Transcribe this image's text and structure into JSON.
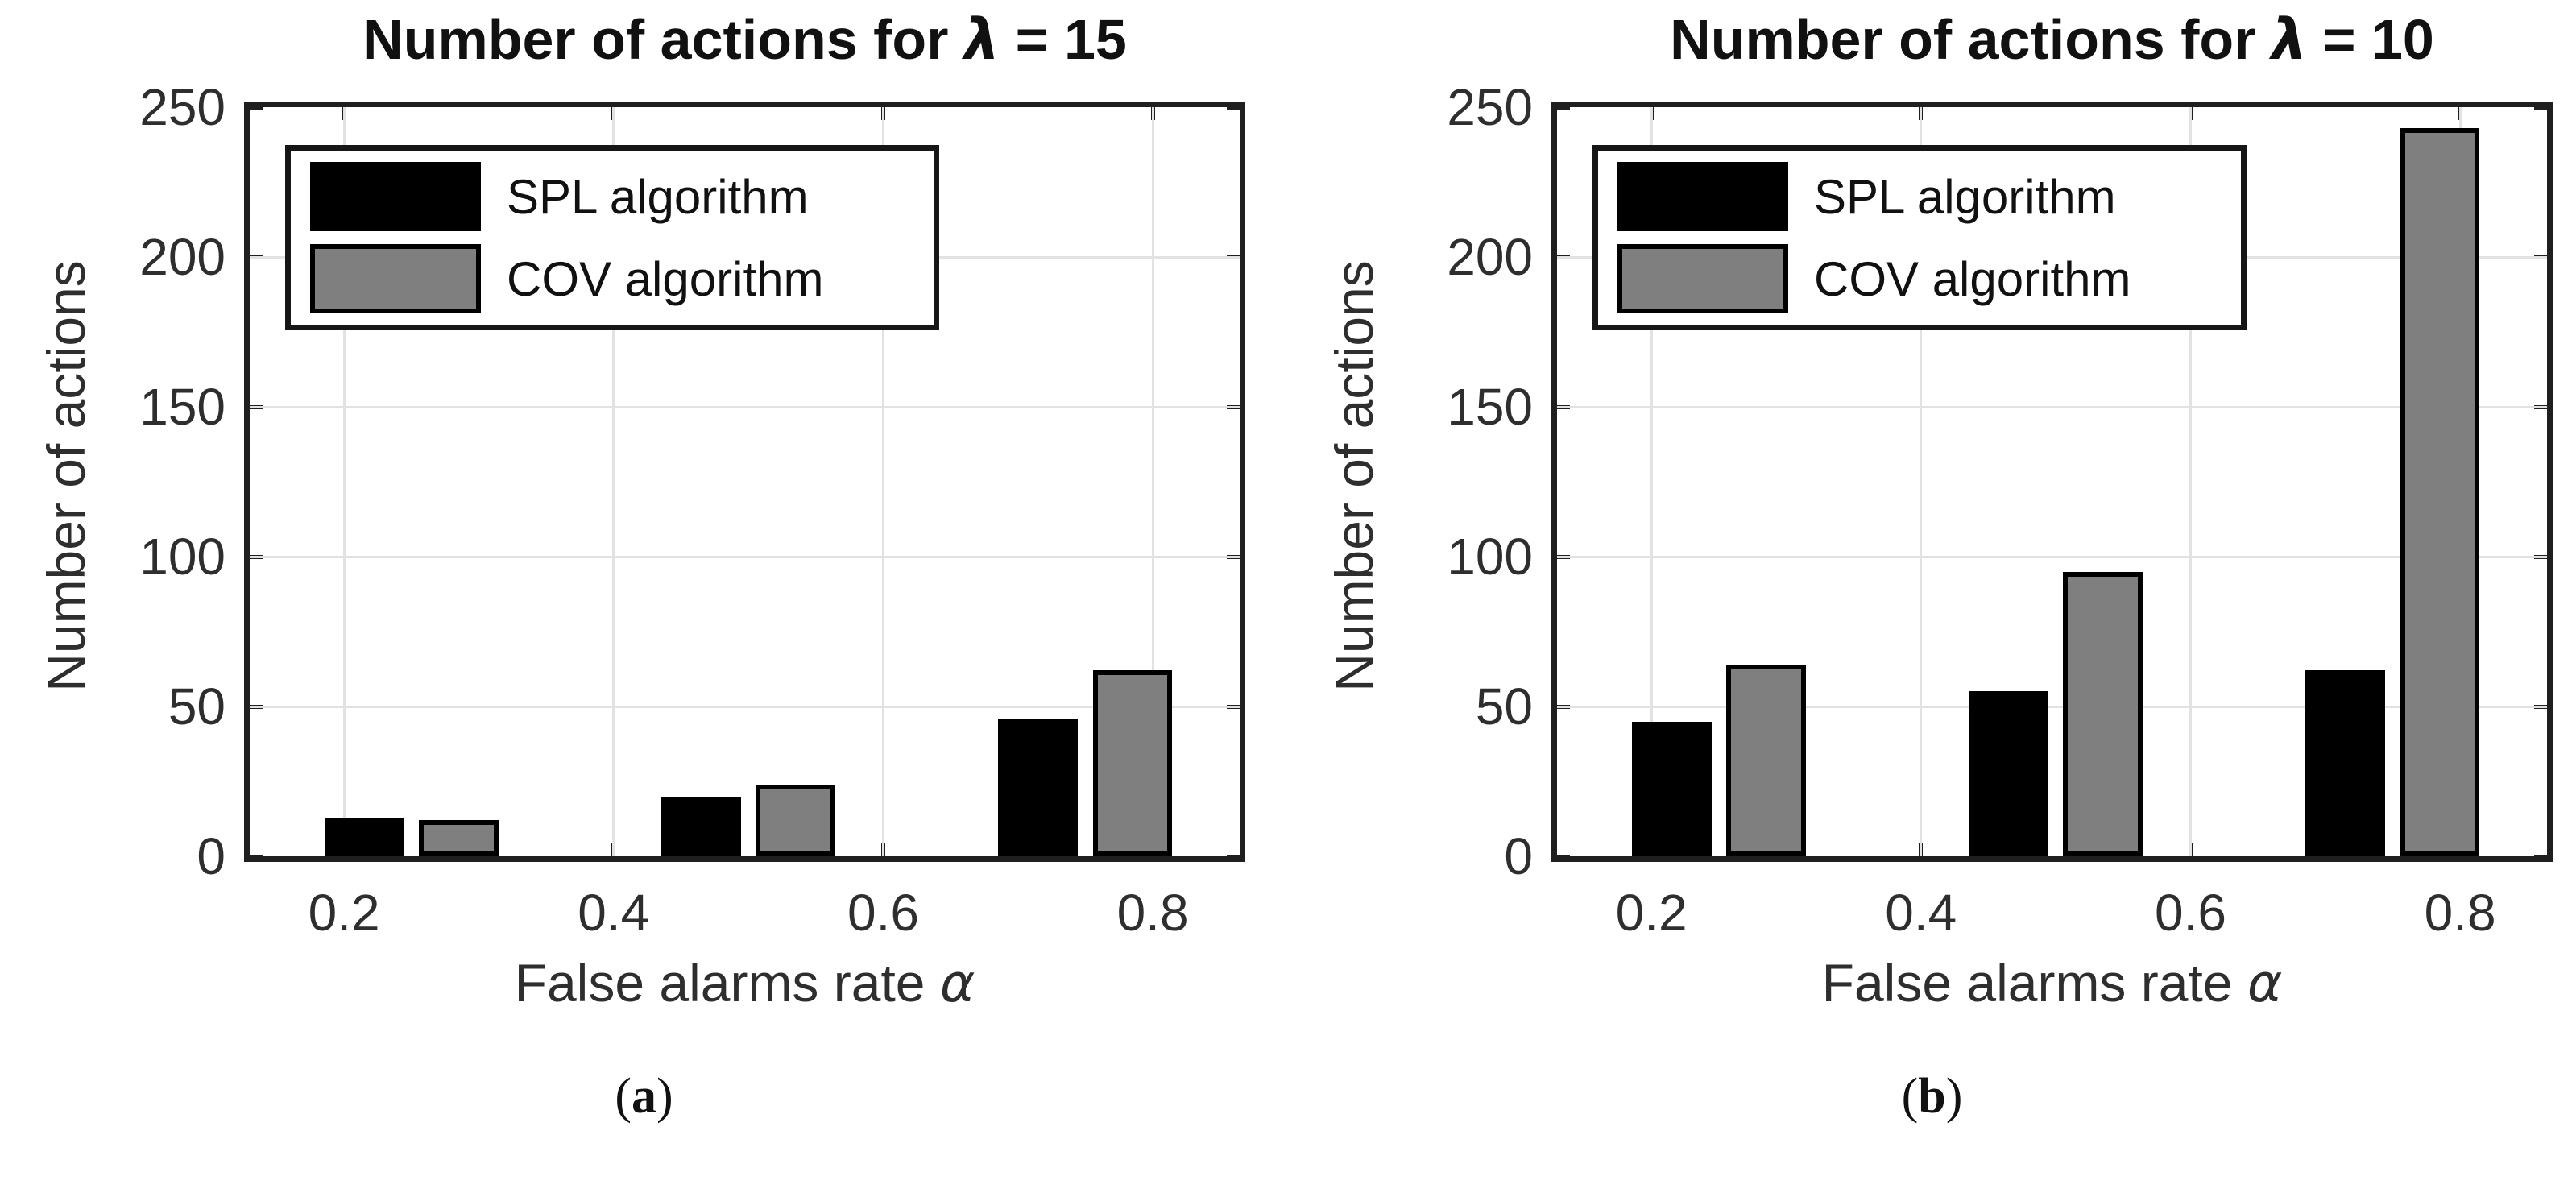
{
  "palette": {
    "spl_bar": "#000000",
    "cov_bar": "#7f7f7f",
    "bar_edge": "#000000",
    "grid": "#e2e2e2",
    "axis": "#1f1f1f",
    "text": "#2e2e2e"
  },
  "chart_data": [
    {
      "type": "bar",
      "title": "Number of actions for λ = 15",
      "title_parts": {
        "prefix": "Number of actions for ",
        "symbol": "λ",
        "suffix": " = 15"
      },
      "ylabel": "Number of actions",
      "xlabel": "False alarms rate α",
      "xlabel_parts": {
        "prefix": "False alarms rate ",
        "symbol": "α"
      },
      "categories": [
        0.25,
        0.5,
        0.75
      ],
      "series": [
        {
          "name": "SPL algorithm",
          "color": "#000000",
          "values": [
            13,
            20,
            46
          ]
        },
        {
          "name": "COV algorithm",
          "color": "#7f7f7f",
          "values": [
            12,
            24,
            62
          ]
        }
      ],
      "ylim": [
        0,
        250
      ],
      "xlim": [
        0.13,
        0.8645
      ],
      "y_tick_values": [
        0,
        50,
        100,
        150,
        200,
        250
      ],
      "y_tick_labels": [
        "0",
        "50",
        "100",
        "150",
        "200",
        "250"
      ],
      "x_tick_values": [
        0.2,
        0.4,
        0.6,
        0.8
      ],
      "x_tick_labels": [
        "0.2",
        "0.4",
        "0.6",
        "0.8"
      ],
      "grid": true,
      "legend_position": "top-left",
      "bar": {
        "width": 0.059,
        "offset": 0.035
      },
      "caption": "(a)",
      "caption_parts": {
        "open": "(",
        "letter": "a",
        "close": ")"
      }
    },
    {
      "type": "bar",
      "title": "Number of actions for λ = 10",
      "title_parts": {
        "prefix": "Number of actions for ",
        "symbol": "λ",
        "suffix": " = 10"
      },
      "ylabel": "Number of actions",
      "xlabel": "False alarms rate α",
      "xlabel_parts": {
        "prefix": "False alarms rate ",
        "symbol": "α"
      },
      "categories": [
        0.25,
        0.5,
        0.75
      ],
      "series": [
        {
          "name": "SPL algorithm",
          "color": "#000000",
          "values": [
            45,
            55,
            62
          ]
        },
        {
          "name": "COV algorithm",
          "color": "#7f7f7f",
          "values": [
            64,
            95,
            243
          ]
        }
      ],
      "ylim": [
        0,
        250
      ],
      "xlim": [
        0.13,
        0.8645
      ],
      "y_tick_values": [
        0,
        50,
        100,
        150,
        200,
        250
      ],
      "y_tick_labels": [
        "0",
        "50",
        "100",
        "150",
        "200",
        "250"
      ],
      "x_tick_values": [
        0.2,
        0.4,
        0.6,
        0.8
      ],
      "x_tick_labels": [
        "0.2",
        "0.4",
        "0.6",
        "0.8"
      ],
      "grid": true,
      "legend_position": "top-left",
      "bar": {
        "width": 0.059,
        "offset": 0.035
      },
      "caption": "(b)",
      "caption_parts": {
        "open": "(",
        "letter": "b",
        "close": ")"
      }
    }
  ]
}
